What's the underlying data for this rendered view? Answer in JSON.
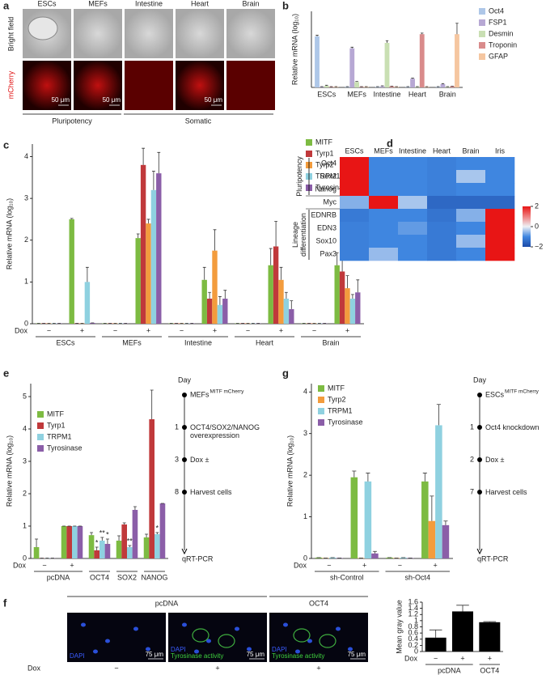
{
  "panel_a": {
    "label": "a",
    "columns": [
      "ESCs",
      "MEFs",
      "Intestine",
      "Heart",
      "Brain"
    ],
    "rows": [
      "Bright field",
      "mCherry"
    ],
    "scale_bar": "50 μm",
    "brackets": [
      "Pluripotency",
      "Somatic"
    ]
  },
  "chart_data": [
    {
      "type": "bar",
      "panel": "b",
      "ylabel": "Relative mRNA (log₁₀)",
      "categories": [
        "ESCs",
        "MEFs",
        "Intestine",
        "Heart",
        "Brain"
      ],
      "series": [
        {
          "name": "Oct4",
          "color": "#aec7e8",
          "values": [
            4.7,
            0.05,
            0.05,
            0.05,
            0.05
          ],
          "errors": [
            0.1,
            0.02,
            0.02,
            0.02,
            0.02
          ]
        },
        {
          "name": "FSP1",
          "color": "#b7a8d4",
          "values": [
            0.05,
            3.6,
            0.1,
            0.8,
            0.3
          ],
          "errors": [
            0.02,
            0.1,
            0.05,
            0.05,
            0.05
          ]
        },
        {
          "name": "Desmin",
          "color": "#c9dfb3",
          "values": [
            0.15,
            0.5,
            4.1,
            0.05,
            0.05
          ],
          "errors": [
            0.05,
            0.05,
            0.2,
            0.02,
            0.02
          ]
        },
        {
          "name": "Troponin",
          "color": "#d98b8b",
          "values": [
            0.05,
            0.05,
            0.1,
            4.9,
            0.1
          ],
          "errors": [
            0.02,
            0.02,
            0.02,
            0.1,
            0.02
          ]
        },
        {
          "name": "GFAP",
          "color": "#f5c6a0",
          "values": [
            0.05,
            0.05,
            0.05,
            0.05,
            4.9
          ],
          "errors": [
            0.02,
            0.02,
            0.02,
            0.02,
            1.0
          ]
        }
      ],
      "ylim": [
        0,
        7
      ],
      "legend": "right"
    },
    {
      "type": "bar",
      "panel": "c",
      "ylabel": "Relative mRNA (log₁₀)",
      "x_title": "Dox",
      "categories": [
        "−",
        "+",
        "−",
        "+",
        "−",
        "+",
        "−",
        "+",
        "−",
        "+"
      ],
      "groups": [
        "ESCs",
        null,
        "MEFs",
        null,
        "Intestine",
        null,
        "Heart",
        null,
        "Brain",
        null
      ],
      "series": [
        {
          "name": "MITF",
          "color": "#7dbb42",
          "values": [
            0.01,
            2.5,
            0.01,
            2.05,
            0.01,
            1.05,
            0.01,
            1.4,
            0.01,
            1.4
          ],
          "errors": [
            0,
            0.02,
            0,
            0.1,
            0,
            0.3,
            0,
            0.4,
            0,
            0.3
          ]
        },
        {
          "name": "Tyrp1",
          "color": "#c0393b",
          "values": [
            0.01,
            0.01,
            0.01,
            3.8,
            0.01,
            0.6,
            0.01,
            1.85,
            0.01,
            1.25
          ],
          "errors": [
            0,
            0,
            0,
            0.4,
            0,
            0.15,
            0,
            0.6,
            0,
            0.3
          ]
        },
        {
          "name": "Tyrp2",
          "color": "#f39c3d",
          "values": [
            0.01,
            0.01,
            0.01,
            2.4,
            0.01,
            1.75,
            0.01,
            1.05,
            0.01,
            0.85
          ],
          "errors": [
            0,
            0,
            0,
            0.1,
            0,
            0.5,
            0,
            0.3,
            0,
            0.3
          ]
        },
        {
          "name": "TRPM1",
          "color": "#8fd1e0",
          "values": [
            0.01,
            1.0,
            0.01,
            3.2,
            0.01,
            0.45,
            0.01,
            0.6,
            0.01,
            0.6
          ],
          "errors": [
            0,
            0.35,
            0,
            0.45,
            0,
            0.2,
            0,
            0.15,
            0,
            0.1
          ]
        },
        {
          "name": "Tyrosinase",
          "color": "#8b5ea8",
          "values": [
            0.01,
            0.02,
            0.01,
            3.6,
            0.01,
            0.6,
            0.01,
            0.35,
            0.01,
            0.75
          ],
          "errors": [
            0,
            0,
            0,
            0.5,
            0,
            0.2,
            0,
            0.2,
            0,
            0.3
          ]
        }
      ],
      "ylim": [
        0,
        4.3
      ],
      "yticks": [
        0,
        1,
        2,
        3,
        4
      ],
      "legend": "top-right"
    },
    {
      "type": "heatmap",
      "panel": "d",
      "columns": [
        "ESCs",
        "MEFs",
        "Intestine",
        "Heart",
        "Brain",
        "Iris"
      ],
      "rows": [
        "Oct4",
        "Sox2",
        "Nanog",
        "Myc",
        "EDNRB",
        "EDN3",
        "Sox10",
        "Pax3"
      ],
      "row_groups": [
        {
          "name": "Pluripotency",
          "first": 0,
          "last": 2
        },
        {
          "name": "Lineage differentiation",
          "first": 4,
          "last": 7
        }
      ],
      "values": [
        [
          2,
          -1,
          -1,
          -1.1,
          -1,
          -1
        ],
        [
          2,
          -1,
          -1,
          -1.1,
          -0.4,
          -1
        ],
        [
          2,
          -1,
          -1,
          -1.1,
          -1,
          -1
        ],
        [
          -0.6,
          2,
          -0.4,
          -1.5,
          -1.5,
          -1.5
        ],
        [
          -1.2,
          -1,
          -1,
          -1.3,
          -0.6,
          2
        ],
        [
          -1.1,
          -1,
          -0.8,
          -1.2,
          -1,
          2
        ],
        [
          -1.1,
          -1,
          -1,
          -1.2,
          -0.5,
          2
        ],
        [
          -1.1,
          -0.5,
          -1,
          -1.2,
          -1,
          2
        ]
      ],
      "zlim": [
        -2,
        2
      ],
      "zticks": [
        2,
        0,
        {
          "value": -2,
          "label": "−2"
        }
      ],
      "colormap": [
        "#1c4aa8",
        "#3f86e0",
        "#eef0f5",
        "#ee8080",
        "#e81515"
      ]
    },
    {
      "type": "bar",
      "panel": "e",
      "ylabel": "Relative mRNA (log₁₀)",
      "x_title": "Dox",
      "categories": [
        "−",
        "+",
        null,
        null,
        null
      ],
      "groups": [
        "pcDNA",
        null,
        "OCT4",
        "SOX2",
        "NANOG"
      ],
      "series": [
        {
          "name": "MITF",
          "color": "#7dbb42",
          "values": [
            0.35,
            1,
            0.72,
            0.55,
            0.65
          ],
          "errors": [
            0.25,
            0,
            0.08,
            0.15,
            0.1
          ]
        },
        {
          "name": "Tyrp1",
          "color": "#c0393b",
          "values": [
            0.01,
            1,
            0.25,
            1.05,
            4.3
          ],
          "errors": [
            0,
            0,
            0.1,
            0.05,
            0.9
          ],
          "significance": [
            null,
            null,
            "*",
            null,
            null
          ]
        },
        {
          "name": "TRPM1",
          "color": "#8fd1e0",
          "values": [
            0.01,
            1,
            0.55,
            0.35,
            0.75
          ],
          "errors": [
            0,
            0,
            0.1,
            0.05,
            0.05
          ],
          "significance": [
            null,
            null,
            "**",
            "**",
            "*"
          ]
        },
        {
          "name": "Tyrosinase",
          "color": "#8b5ea8",
          "values": [
            0.01,
            1,
            0.45,
            1.5,
            1.7
          ],
          "errors": [
            0,
            0,
            0.15,
            0.1,
            0
          ],
          "significance": [
            null,
            null,
            "*",
            null,
            null
          ]
        }
      ],
      "ylim": [
        0,
        5.4
      ],
      "yticks": [
        0,
        1,
        2,
        3,
        4,
        5
      ],
      "legend": "top-left"
    },
    {
      "type": "bar",
      "panel": "g",
      "ylabel": "Relative mRNA (log₁₀)",
      "x_title": "Dox",
      "categories": [
        "−",
        "+",
        "−",
        "+"
      ],
      "groups": [
        "sh-Control",
        null,
        "sh-Oct4",
        null
      ],
      "series": [
        {
          "name": "MITF",
          "color": "#7dbb42",
          "values": [
            0.02,
            1.95,
            0.02,
            1.85
          ],
          "errors": [
            0,
            0.15,
            0,
            0.2
          ]
        },
        {
          "name": "Tyrp2",
          "color": "#f39c3d",
          "values": [
            0.01,
            0.01,
            0.01,
            0.9
          ],
          "errors": [
            0,
            0,
            0,
            0.6
          ]
        },
        {
          "name": "TRPM1",
          "color": "#8fd1e0",
          "values": [
            0.02,
            1.85,
            0.02,
            3.2
          ],
          "errors": [
            0,
            0.2,
            0,
            0.5
          ]
        },
        {
          "name": "Tyrosinase",
          "color": "#8b5ea8",
          "values": [
            0.01,
            0.12,
            0.01,
            0.8
          ],
          "errors": [
            0,
            0.05,
            0,
            0.1
          ]
        }
      ],
      "ylim": [
        0,
        4.2
      ],
      "yticks": [
        0,
        1,
        2,
        3,
        4
      ],
      "legend": "top-left"
    },
    {
      "type": "bar",
      "ylabel": "Mean gray value",
      "x_title": "Dox",
      "categories": [
        "−",
        "+",
        "+"
      ],
      "groups": [
        "pcDNA",
        null,
        "OCT4"
      ],
      "series": [
        {
          "color": "#000000",
          "values": [
            0.45,
            1.3,
            0.95
          ],
          "errors": [
            0.25,
            0.2,
            0.02
          ]
        }
      ],
      "ylim": [
        0,
        1.6
      ],
      "yticks": [
        0,
        0.2,
        0.4,
        0.6,
        0.8,
        1,
        1.2,
        1.4,
        1.6
      ]
    }
  ],
  "protocols": [
    {
      "title": "Day",
      "start": "MEFs",
      "start_sup": "MITF mCherry",
      "steps": [
        {
          "day": 1,
          "text": "OCT4/SOX2/NANOG overexpression"
        },
        {
          "day": 3,
          "text": "Dox ±"
        },
        {
          "day": 8,
          "text": "Harvest cells"
        }
      ],
      "end": "qRT-PCR"
    },
    {
      "title": "Day",
      "start": "ESCs",
      "start_sup": "MITF mCherry",
      "steps": [
        {
          "day": 1,
          "text": "Oct4 knockdown"
        },
        {
          "day": 2,
          "text": "Dox ±"
        },
        {
          "day": 7,
          "text": "Harvest cells"
        }
      ],
      "end": "qRT-PCR"
    }
  ],
  "panel_f": {
    "label": "f",
    "groups": [
      "pcDNA",
      "OCT4"
    ],
    "x_title": "Dox",
    "dox": [
      "−",
      "+",
      "+"
    ],
    "stains": [
      "DAPI",
      "Tyrosinase activity"
    ],
    "scale_bar": "75 μm"
  }
}
